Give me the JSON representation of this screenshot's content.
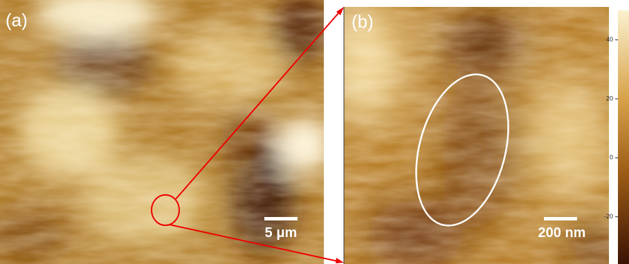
{
  "panels": [
    {
      "label": "(a)",
      "scale_bar": "5 μm"
    },
    {
      "label": "(b)",
      "scale_bar": "200 nm"
    }
  ],
  "colorbar": {
    "range": [
      -36,
      50
    ],
    "ticks": [
      40,
      20,
      0,
      -20
    ]
  }
}
